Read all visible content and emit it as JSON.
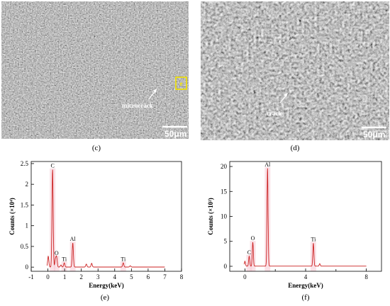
{
  "panels": {
    "c": {
      "caption": "(c)",
      "annotation": "microcrack",
      "inset_label": "e",
      "scale_bar": "50μm"
    },
    "d": {
      "caption": "(d)",
      "annotation": "crack",
      "scale_bar": "50μm"
    },
    "e": {
      "caption": "(e)"
    },
    "f": {
      "caption": "(f)"
    }
  },
  "chart_data": [
    {
      "type": "line",
      "panel": "e",
      "xlabel": "Energy(keV)",
      "ylabel": "Counts (×10⁴)",
      "xlim": [
        -1,
        8
      ],
      "ylim": [
        -0.1,
        2.55
      ],
      "xticks": [
        -1,
        0,
        1,
        2,
        3,
        4,
        5,
        6,
        7,
        8
      ],
      "yticks": [
        0,
        0.5,
        1,
        1.5,
        2,
        2.5
      ],
      "line_color": "#cc2222",
      "peaks": [
        {
          "x": 0.02,
          "y": 0.26
        },
        {
          "x": 0.28,
          "y": 2.35,
          "label": "C"
        },
        {
          "x": 0.52,
          "y": 0.24,
          "label": "O"
        },
        {
          "x": 0.78,
          "y": 0.05
        },
        {
          "x": 0.45,
          "y": 0.18
        },
        {
          "x": 0.98,
          "y": 0.1,
          "label": "Ti"
        },
        {
          "x": 1.49,
          "y": 0.58,
          "label": "Al"
        },
        {
          "x": 2.3,
          "y": 0.07
        },
        {
          "x": 2.62,
          "y": 0.09
        },
        {
          "x": 4.51,
          "y": 0.1,
          "label": "Ti"
        },
        {
          "x": 4.93,
          "y": 0.03
        }
      ],
      "label_positions": {
        "C": [
          0.28,
          2.42
        ],
        "O": [
          0.55,
          0.3
        ],
        "Ti": [
          0.98,
          0.16
        ],
        "Al": [
          1.49,
          0.66
        ],
        "Ti2": [
          4.51,
          0.16
        ]
      }
    },
    {
      "type": "line",
      "panel": "f",
      "xlabel": "Energy(keV)",
      "ylabel": "Counts (×10²)",
      "xlim": [
        -1,
        9
      ],
      "ylim": [
        -1,
        21
      ],
      "xticks": [
        0,
        4,
        8
      ],
      "xticks_minor": [
        2,
        6
      ],
      "yticks": [
        0,
        5,
        10,
        15,
        20
      ],
      "line_color": "#cc2222",
      "peaks": [
        {
          "x": 0.0,
          "y": 1.0
        },
        {
          "x": 0.28,
          "y": 2.0,
          "label": "C"
        },
        {
          "x": 0.52,
          "y": 4.8,
          "label": "O"
        },
        {
          "x": 1.49,
          "y": 19.6,
          "label": "Al"
        },
        {
          "x": 4.51,
          "y": 4.6,
          "label": "Ti"
        },
        {
          "x": 4.93,
          "y": 0.5
        }
      ]
    }
  ]
}
